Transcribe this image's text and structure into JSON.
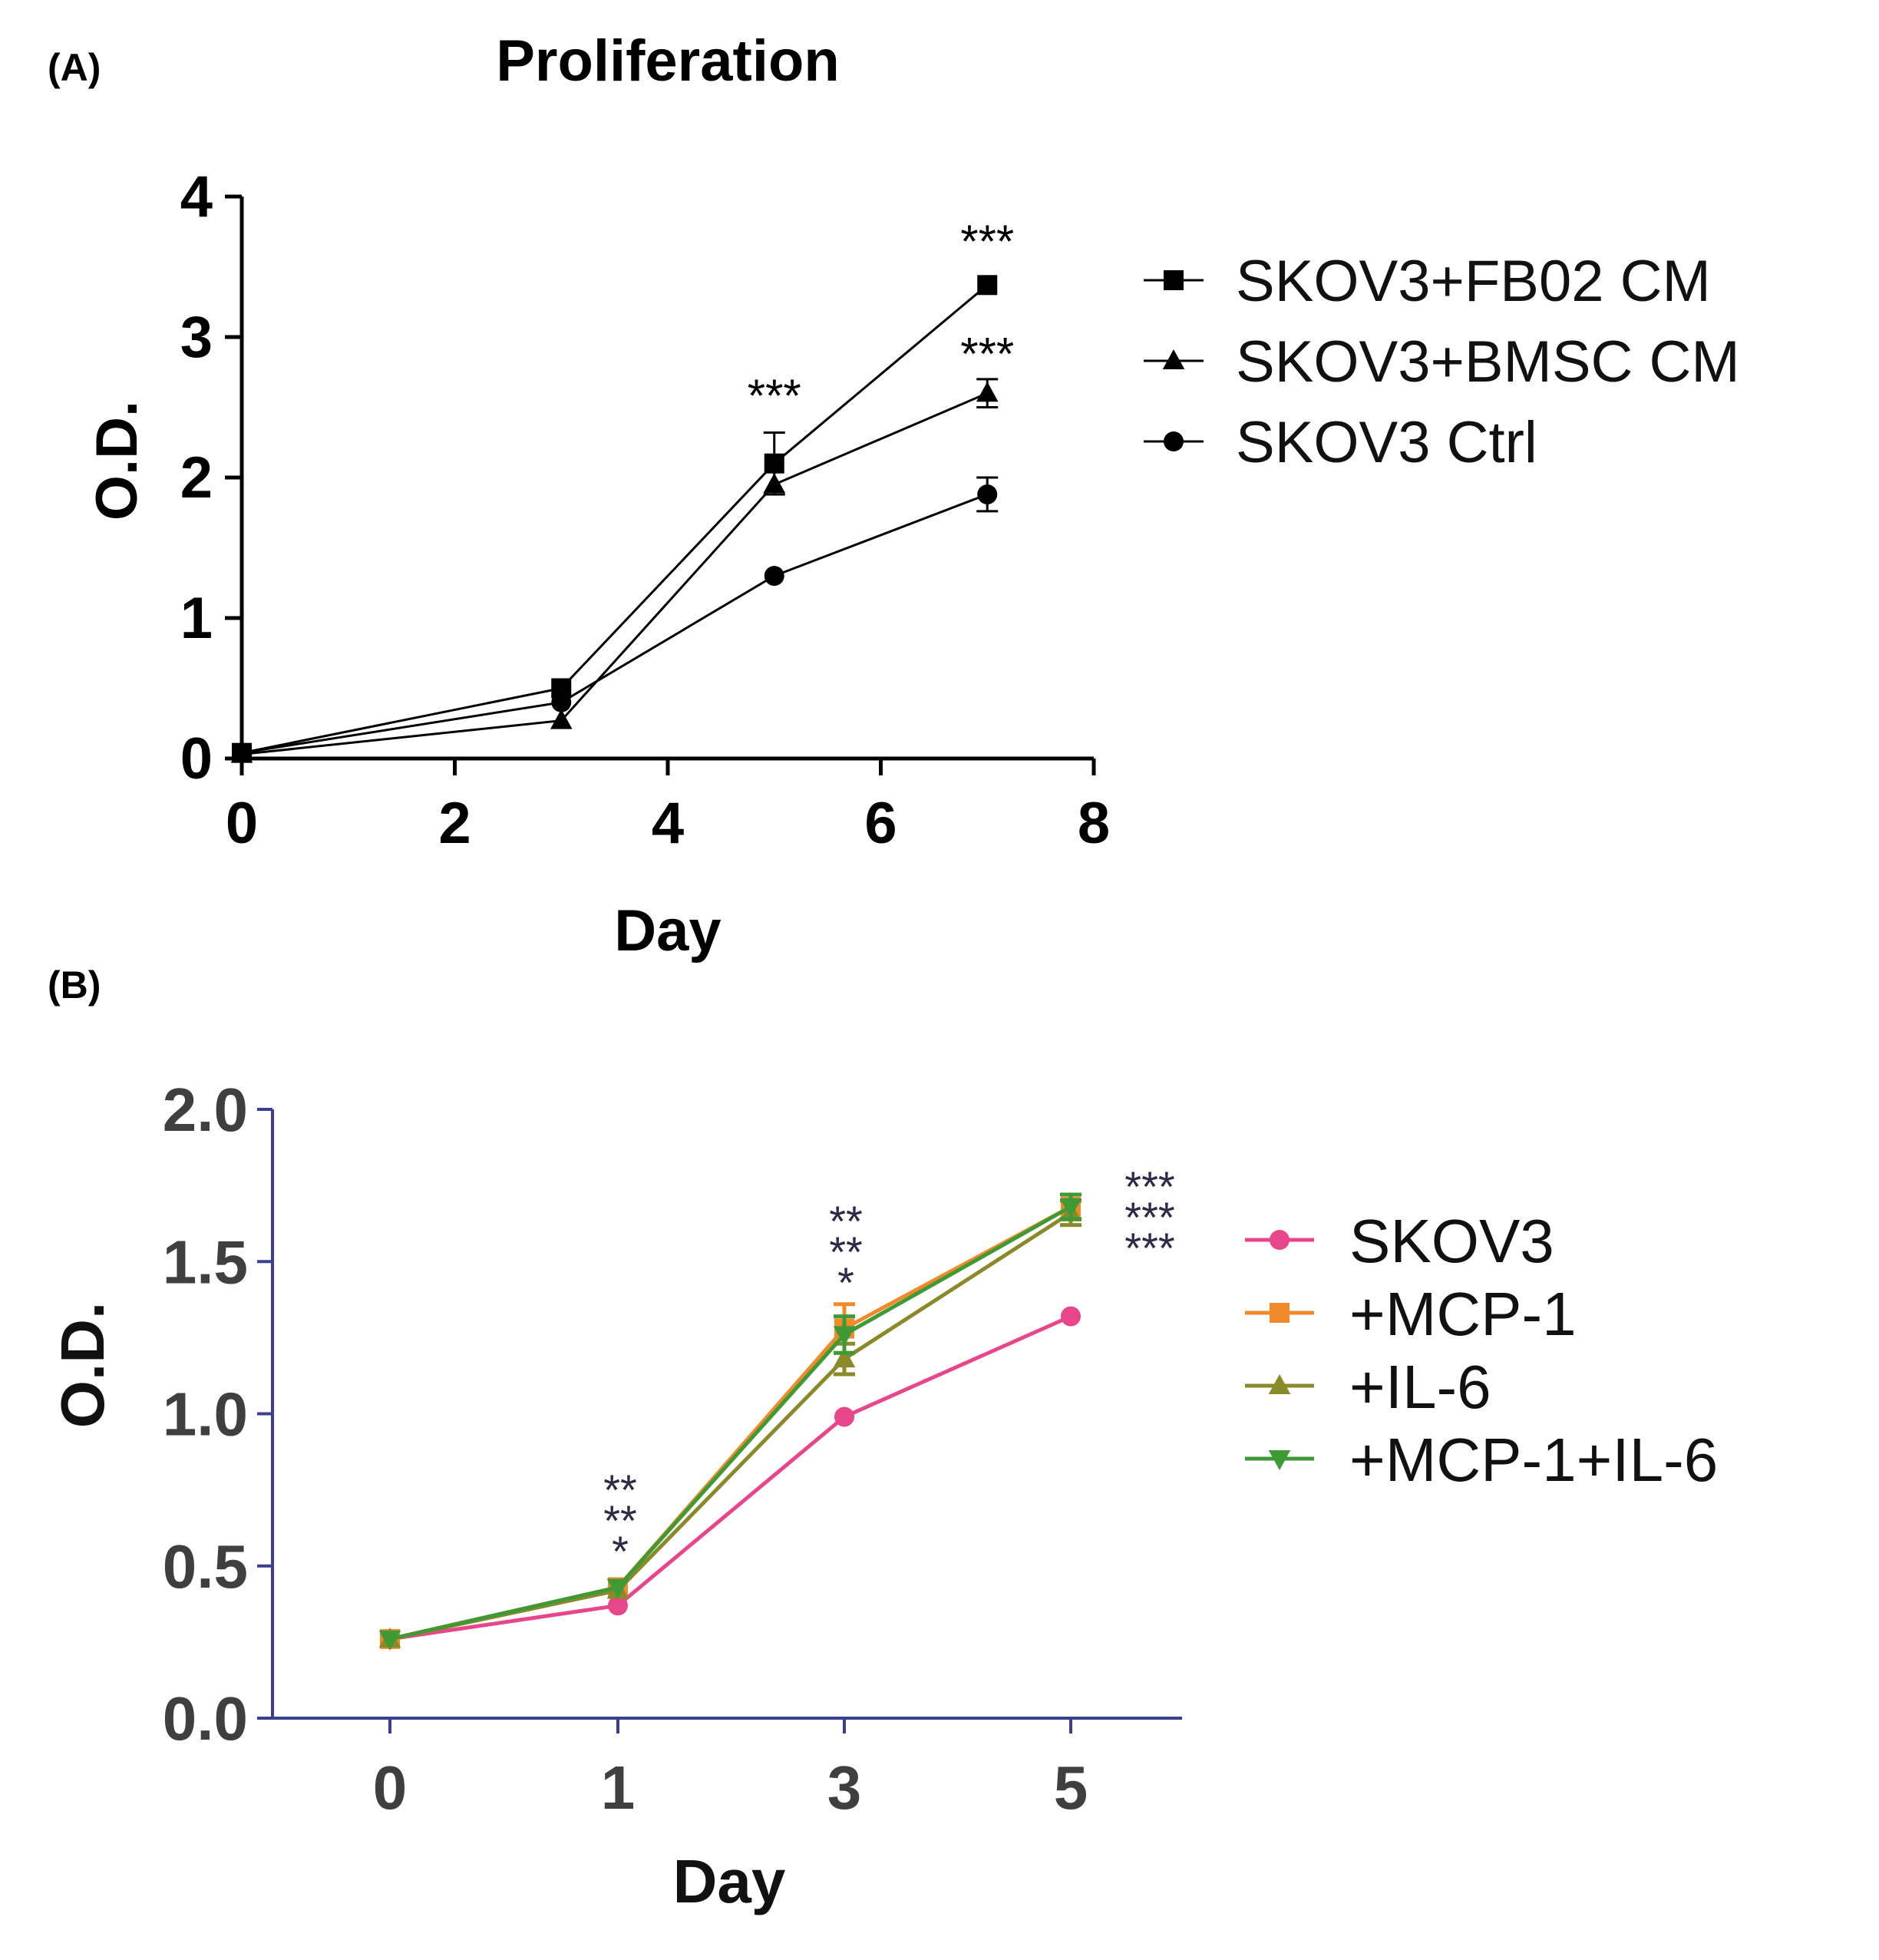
{
  "chart_data": [
    {
      "panel_label": "(A)",
      "type": "line",
      "title": "Proliferation",
      "xlabel": "Day",
      "ylabel": "O.D.",
      "xlim": [
        0,
        8
      ],
      "ylim": [
        0,
        4
      ],
      "xticks": [
        "0",
        "2",
        "4",
        "6",
        "8"
      ],
      "yticks": [
        "0",
        "1",
        "2",
        "3",
        "4"
      ],
      "x": [
        0,
        3,
        5,
        7
      ],
      "legend_position": "right",
      "series": [
        {
          "name": "SKOV3+FB02 CM",
          "marker": "square",
          "color": "#000000",
          "values": [
            0.04,
            0.5,
            2.1,
            3.37
          ],
          "errors": [
            0,
            0,
            0.22,
            0
          ]
        },
        {
          "name": "SKOV3+BMSC CM",
          "marker": "triangle",
          "color": "#000000",
          "values": [
            0.03,
            0.27,
            1.95,
            2.6
          ],
          "errors": [
            0,
            0,
            0,
            0.1
          ]
        },
        {
          "name": "SKOV3 Ctrl",
          "marker": "circle",
          "color": "#000000",
          "values": [
            0.04,
            0.4,
            1.3,
            1.88
          ],
          "errors": [
            0,
            0,
            0,
            0.12
          ]
        }
      ],
      "annotations": [
        {
          "x": 5,
          "y": 2.6,
          "text": "***"
        },
        {
          "x": 7,
          "y": 3.7,
          "text": "***"
        },
        {
          "x": 7,
          "y": 2.9,
          "text": "***"
        }
      ]
    },
    {
      "panel_label": "(B)",
      "type": "line",
      "title": "",
      "xlabel": "Day",
      "ylabel": "O.D.",
      "ylim": [
        0,
        2
      ],
      "xticks": [
        "0",
        "1",
        "3",
        "5"
      ],
      "yticks": [
        "0.0",
        "0.5",
        "1.0",
        "1.5",
        "2.0"
      ],
      "categories": [
        "0",
        "1",
        "3",
        "5"
      ],
      "axis_color": "#3b3f8f",
      "legend_position": "right",
      "series": [
        {
          "name": "SKOV3",
          "marker": "circle",
          "color": "#e8468a",
          "values": [
            0.26,
            0.37,
            0.99,
            1.32
          ],
          "errors": [
            0,
            0,
            0,
            0
          ]
        },
        {
          "name": "+MCP-1",
          "marker": "square",
          "color": "#f08a2a",
          "values": [
            0.26,
            0.43,
            1.28,
            1.68
          ],
          "errors": [
            0,
            0,
            0.08,
            0.04
          ]
        },
        {
          "name": "+IL-6",
          "marker": "triangle",
          "color": "#8a8a2a",
          "values": [
            0.26,
            0.42,
            1.18,
            1.66
          ],
          "errors": [
            0,
            0,
            0.05,
            0.04
          ]
        },
        {
          "name": "+MCP-1+IL-6",
          "marker": "triangle-down",
          "color": "#3f9a36",
          "values": [
            0.26,
            0.43,
            1.26,
            1.68
          ],
          "errors": [
            0,
            0,
            0.06,
            0.04
          ]
        }
      ],
      "annotations": [
        {
          "x": "1",
          "lines": [
            "**",
            "**",
            "*"
          ]
        },
        {
          "x": "3",
          "lines": [
            "**",
            "**",
            "*"
          ]
        },
        {
          "x": "5",
          "lines": [
            "***",
            "***",
            "***"
          ]
        }
      ]
    }
  ]
}
